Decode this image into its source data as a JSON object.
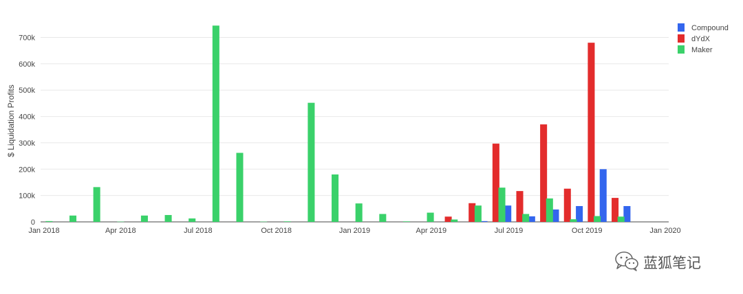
{
  "chart_data": {
    "type": "bar",
    "xlabel": "",
    "ylabel": "$ Liquidation Profits",
    "ylim": [
      0,
      790000
    ],
    "yticks": [
      0,
      100000,
      200000,
      300000,
      400000,
      500000,
      600000,
      700000
    ],
    "ytick_labels": [
      "0",
      "100k",
      "200k",
      "300k",
      "400k",
      "500k",
      "600k",
      "700k"
    ],
    "xticks": [
      "2018-01-01",
      "2018-04-01",
      "2018-07-01",
      "2018-10-01",
      "2019-01-01",
      "2019-04-01",
      "2019-07-01",
      "2019-10-01",
      "2020-01-01"
    ],
    "xtick_labels": [
      "Jan 2018",
      "Apr 2018",
      "Jul 2018",
      "Oct 2018",
      "Jan 2019",
      "Apr 2019",
      "Jul 2019",
      "Oct 2019",
      "Jan 2020"
    ],
    "xlim": [
      "2017-12-28",
      "2020-01-05"
    ],
    "bin": "2 weeks",
    "grid": true,
    "legend_position": "top-right",
    "series": [
      {
        "name": "Compound",
        "color": "#3366ee",
        "points": [
          {
            "x": "2019-06-02",
            "y": 3000
          },
          {
            "x": "2019-06-30",
            "y": 62000
          },
          {
            "x": "2019-07-28",
            "y": 21000
          },
          {
            "x": "2019-08-25",
            "y": 47000
          },
          {
            "x": "2019-09-22",
            "y": 60000
          },
          {
            "x": "2019-10-20",
            "y": 200000
          },
          {
            "x": "2019-11-17",
            "y": 60000
          }
        ]
      },
      {
        "name": "dYdX",
        "color": "#e32c2c",
        "points": [
          {
            "x": "2019-04-21",
            "y": 20000
          },
          {
            "x": "2019-05-19",
            "y": 71000
          },
          {
            "x": "2019-06-16",
            "y": 297000
          },
          {
            "x": "2019-07-14",
            "y": 117000
          },
          {
            "x": "2019-08-11",
            "y": 370000
          },
          {
            "x": "2019-09-08",
            "y": 126000
          },
          {
            "x": "2019-10-06",
            "y": 680000
          },
          {
            "x": "2019-11-03",
            "y": 91000
          }
        ]
      },
      {
        "name": "Maker",
        "color": "#3ad16a",
        "points": [
          {
            "x": "2018-01-07",
            "y": 3000
          },
          {
            "x": "2018-02-04",
            "y": 24000
          },
          {
            "x": "2018-03-04",
            "y": 132000
          },
          {
            "x": "2018-04-01",
            "y": 1000
          },
          {
            "x": "2018-04-29",
            "y": 24000
          },
          {
            "x": "2018-05-27",
            "y": 26000
          },
          {
            "x": "2018-06-24",
            "y": 13000
          },
          {
            "x": "2018-07-22",
            "y": 745000
          },
          {
            "x": "2018-08-19",
            "y": 262000
          },
          {
            "x": "2018-09-16",
            "y": 1000
          },
          {
            "x": "2018-10-14",
            "y": 2000
          },
          {
            "x": "2018-11-11",
            "y": 452000
          },
          {
            "x": "2018-12-09",
            "y": 180000
          },
          {
            "x": "2019-01-06",
            "y": 70000
          },
          {
            "x": "2019-02-03",
            "y": 30000
          },
          {
            "x": "2019-03-03",
            "y": 2000
          },
          {
            "x": "2019-03-31",
            "y": 35000
          },
          {
            "x": "2019-04-28",
            "y": 9000
          },
          {
            "x": "2019-05-26",
            "y": 62000
          },
          {
            "x": "2019-06-23",
            "y": 130000
          },
          {
            "x": "2019-07-21",
            "y": 30000
          },
          {
            "x": "2019-08-18",
            "y": 89000
          },
          {
            "x": "2019-09-15",
            "y": 10000
          },
          {
            "x": "2019-10-13",
            "y": 22000
          },
          {
            "x": "2019-11-10",
            "y": 20000
          }
        ]
      }
    ]
  },
  "watermark": {
    "text": "蓝狐笔记",
    "icon": "wechat-icon"
  }
}
